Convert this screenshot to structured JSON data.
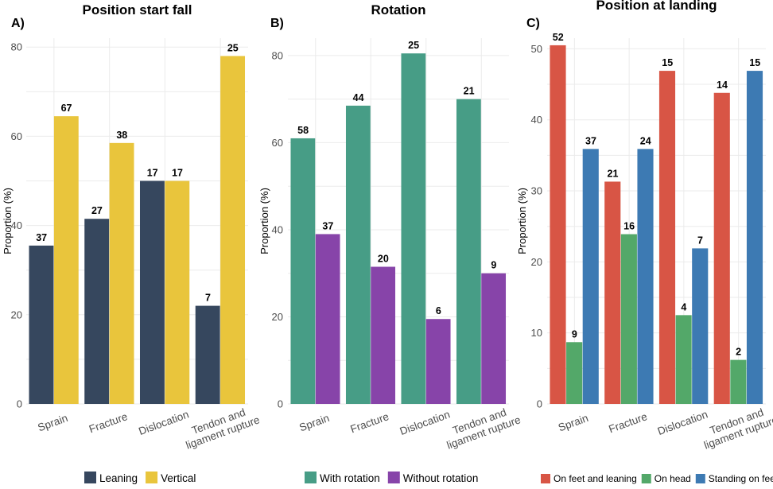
{
  "chart_data": [
    {
      "type": "bar",
      "panel_label": "A)",
      "title": "Position start fall",
      "ylabel": "Proportion (%)",
      "ylim": [
        0,
        82
      ],
      "yticks": [
        0,
        20,
        40,
        60,
        80
      ],
      "categories": [
        "Sprain",
        "Fracture",
        "Dislocation",
        "Tendon and ligament rupture"
      ],
      "category_lines": [
        [
          "Sprain"
        ],
        [
          "Fracture"
        ],
        [
          "Dislocation"
        ],
        [
          "Tendon and",
          "ligament rupture"
        ]
      ],
      "series": [
        {
          "name": "Leaning",
          "color": "#36475e",
          "values": [
            35.5,
            41.5,
            50,
            22
          ],
          "labels": [
            "37",
            "27",
            "17",
            "7"
          ]
        },
        {
          "name": "Vertical",
          "color": "#e9c53c",
          "values": [
            64.5,
            58.5,
            50,
            78
          ],
          "labels": [
            "67",
            "38",
            "17",
            "25"
          ]
        }
      ]
    },
    {
      "type": "bar",
      "panel_label": "B)",
      "title": "Rotation",
      "ylabel": "Proportion (%)",
      "ylim": [
        0,
        84
      ],
      "yticks": [
        0,
        20,
        40,
        60,
        80
      ],
      "categories": [
        "Sprain",
        "Fracture",
        "Dislocation",
        "Tendon and ligament rupture"
      ],
      "category_lines": [
        [
          "Sprain"
        ],
        [
          "Fracture"
        ],
        [
          "Dislocation"
        ],
        [
          "Tendon and",
          "ligament rupture"
        ]
      ],
      "series": [
        {
          "name": "With rotation",
          "color": "#479d86",
          "values": [
            61,
            68.5,
            80.5,
            70
          ],
          "labels": [
            "58",
            "44",
            "25",
            "21"
          ]
        },
        {
          "name": "Without rotation",
          "color": "#8744a9",
          "values": [
            39,
            31.5,
            19.5,
            30
          ],
          "labels": [
            "37",
            "20",
            "6",
            "9"
          ]
        }
      ]
    },
    {
      "type": "bar",
      "panel_label": "C)",
      "title": "Position at landing",
      "ylabel": "Proportion (%)",
      "ylim": [
        0,
        51.5
      ],
      "yticks": [
        0,
        10,
        20,
        30,
        40,
        50
      ],
      "categories": [
        "Sprain",
        "Fracture",
        "Dislocation",
        "Tendon and ligament rupture"
      ],
      "category_lines": [
        [
          "Sprain"
        ],
        [
          "Fracture"
        ],
        [
          "Dislocation"
        ],
        [
          "Tendon and",
          "ligament rupture"
        ]
      ],
      "series": [
        {
          "name": "On feet and leaning",
          "color": "#d85545",
          "values": [
            50.5,
            31.3,
            46.9,
            43.8
          ],
          "labels": [
            "52",
            "21",
            "15",
            "14"
          ]
        },
        {
          "name": "On head",
          "color": "#53a869",
          "values": [
            8.7,
            23.9,
            12.5,
            6.2
          ],
          "labels": [
            "9",
            "16",
            "4",
            "2"
          ]
        },
        {
          "name": "Standing on feet",
          "color": "#3d7ab3",
          "values": [
            35.9,
            35.9,
            21.9,
            46.9
          ],
          "labels": [
            "37",
            "24",
            "7",
            "15"
          ]
        }
      ]
    }
  ]
}
